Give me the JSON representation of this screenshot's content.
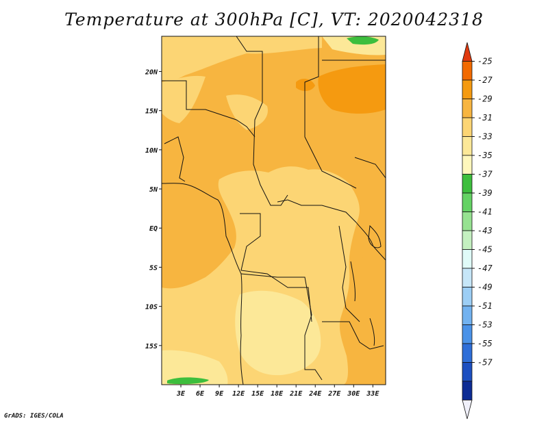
{
  "title": "Temperature at 300hPa [C], VT: 2020042318",
  "credit": "GrADS: IGES/COLA",
  "map": {
    "region": "Central Africa",
    "lon_range": [
      0,
      35
    ],
    "lat_range": [
      -20,
      24.5
    ],
    "lon_ticks": [
      "3E",
      "6E",
      "9E",
      "12E",
      "15E",
      "18E",
      "21E",
      "24E",
      "27E",
      "30E",
      "33E"
    ],
    "lon_tick_values": [
      3,
      6,
      9,
      12,
      15,
      18,
      21,
      24,
      27,
      30,
      33
    ],
    "lat_ticks": [
      "20N",
      "15N",
      "10N",
      "5N",
      "EQ",
      "5S",
      "10S",
      "15S"
    ],
    "lat_tick_values": [
      20,
      15,
      10,
      5,
      0,
      -5,
      -10,
      -15
    ]
  },
  "colorbar": {
    "labels": [
      "-25",
      "-27",
      "-29",
      "-31",
      "-33",
      "-35",
      "-37",
      "-39",
      "-41",
      "-43",
      "-45",
      "-47",
      "-49",
      "-51",
      "-53",
      "-55",
      "-57"
    ],
    "colors": [
      "#e03a0f",
      "#f26a00",
      "#f59a10",
      "#f7b540",
      "#fcd574",
      "#fce898",
      "#fef7bc",
      "#3dbe3d",
      "#64d264",
      "#96e291",
      "#c4f0c0",
      "#e0fbf8",
      "#c6e6f8",
      "#9ccef5",
      "#72b2f0",
      "#4a92e8",
      "#2e6ed8",
      "#1c4fc0",
      "#0d2c94",
      "#f0f0fa"
    ]
  }
}
